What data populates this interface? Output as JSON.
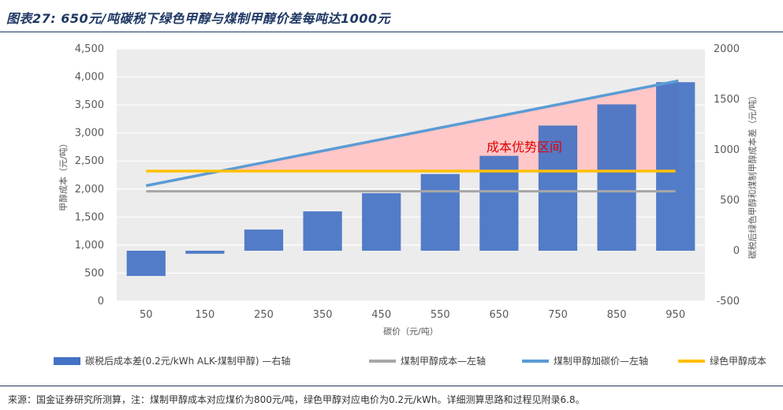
{
  "title": "图表27: 650元/吨碳税下绿色甲醇与煤制甲醇价差每吨达1000元",
  "source": "来源：国金证券研究所测算，注：煤制甲醇成本对应煤价为800元/吨，绿色甲醇对应电价为0.2元/kWh。详细测算思路和过程见附录6.8。",
  "chart_data": {
    "type": "bar+line",
    "categories": [
      "50",
      "150",
      "250",
      "350",
      "450",
      "550",
      "650",
      "750",
      "850",
      "950"
    ],
    "xlabel": "碳价（元/吨）",
    "ylabel_left": "甲醇成本（元/吨）",
    "ylabel_right": "碳税后绿色甲醇和煤制甲醇成本差（元/吨）",
    "ylim_left": [
      0,
      4500
    ],
    "yticks_left": [
      "0",
      "500",
      "1,000",
      "1,500",
      "2,000",
      "2,500",
      "3,000",
      "3,500",
      "4,000",
      "4,500"
    ],
    "ylim_right": [
      -500,
      2000
    ],
    "yticks_right": [
      "-500",
      "0",
      "500",
      "1000",
      "1500",
      "2000"
    ],
    "grid": true,
    "legend_position": "bottom",
    "annotation": "成本优势区间",
    "series": [
      {
        "name": "碳税后成本差(0.2元/kWh ALK-煤制甲醇) —右轴",
        "type": "bar",
        "axis": "right",
        "color": "#4472c4",
        "values": [
          -250,
          -30,
          210,
          390,
          570,
          760,
          940,
          1240,
          1450,
          1670
        ]
      },
      {
        "name": "煤制甲醇成本—左轴",
        "type": "line",
        "axis": "left",
        "color": "#a6a6a6",
        "values": [
          1960,
          1960,
          1960,
          1960,
          1960,
          1960,
          1960,
          1960,
          1960,
          1960
        ]
      },
      {
        "name": "煤制甲醇加碳价—左轴",
        "type": "line",
        "axis": "left",
        "color": "#5b9bd5",
        "values": [
          2060,
          2270,
          2470,
          2680,
          2880,
          3090,
          3300,
          3500,
          3710,
          3920
        ]
      },
      {
        "name": "绿色甲醇成本",
        "type": "line",
        "axis": "left",
        "color": "#ffc000",
        "values": [
          2320,
          2320,
          2320,
          2320,
          2320,
          2320,
          2320,
          2320,
          2320,
          2320
        ]
      }
    ]
  }
}
